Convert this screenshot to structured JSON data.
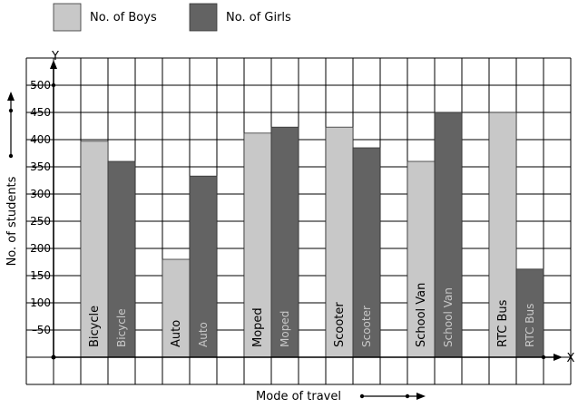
{
  "chart_data": {
    "type": "bar",
    "title": "",
    "xlabel": "Mode of travel",
    "ylabel": "No. of students",
    "axis_letters": {
      "x": "X",
      "y": "Y"
    },
    "categories": [
      "Bicycle",
      "Auto",
      "Moped",
      "Scooter",
      "School Van",
      "RTC Bus"
    ],
    "series": [
      {
        "name": "No. of Boys",
        "color": "#c8c8c8",
        "values": [
          397,
          180,
          412,
          423,
          360,
          450
        ]
      },
      {
        "name": "No. of Girls",
        "color": "#636363",
        "values": [
          360,
          333,
          423,
          385,
          450,
          162
        ]
      }
    ],
    "yticks": [
      50,
      100,
      150,
      200,
      250,
      300,
      350,
      400,
      450,
      500
    ],
    "ytick_labels": [
      "50",
      "100",
      "150",
      "200",
      "250",
      "300",
      "350",
      "400",
      "450",
      "500"
    ],
    "ylim": [
      -50,
      550
    ],
    "grid": true,
    "legend_position": "top-left"
  }
}
